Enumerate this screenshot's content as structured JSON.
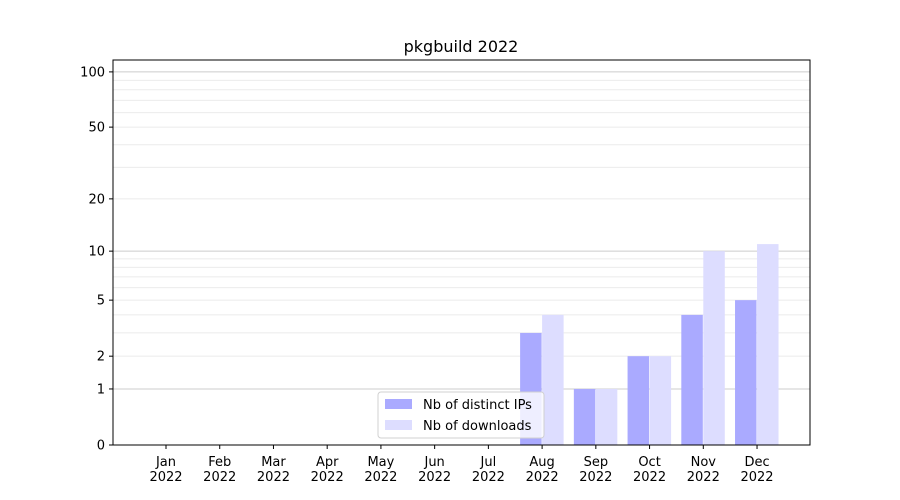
{
  "chart_data": {
    "type": "bar",
    "title": "pkgbuild 2022",
    "xlabel": "",
    "ylabel": "",
    "yscale": "symlog",
    "ylim": [
      0,
      116
    ],
    "yticks": [
      0,
      1,
      2,
      5,
      10,
      20,
      50,
      100
    ],
    "grid": true,
    "categories": [
      "Jan\n2022",
      "Feb\n2022",
      "Mar\n2022",
      "Apr\n2022",
      "May\n2022",
      "Jun\n2022",
      "Jul\n2022",
      "Aug\n2022",
      "Sep\n2022",
      "Oct\n2022",
      "Nov\n2022",
      "Dec\n2022"
    ],
    "series": [
      {
        "name": "Nb of distinct IPs",
        "color": "#aaaaff",
        "values": [
          0,
          0,
          0,
          0,
          0,
          0,
          0,
          3,
          1,
          2,
          4,
          5
        ]
      },
      {
        "name": "Nb of downloads",
        "color": "#ddddff",
        "values": [
          0,
          0,
          0,
          0,
          0,
          0,
          0,
          4,
          1,
          2,
          10,
          11
        ]
      }
    ],
    "legend_position": "lower-center"
  }
}
